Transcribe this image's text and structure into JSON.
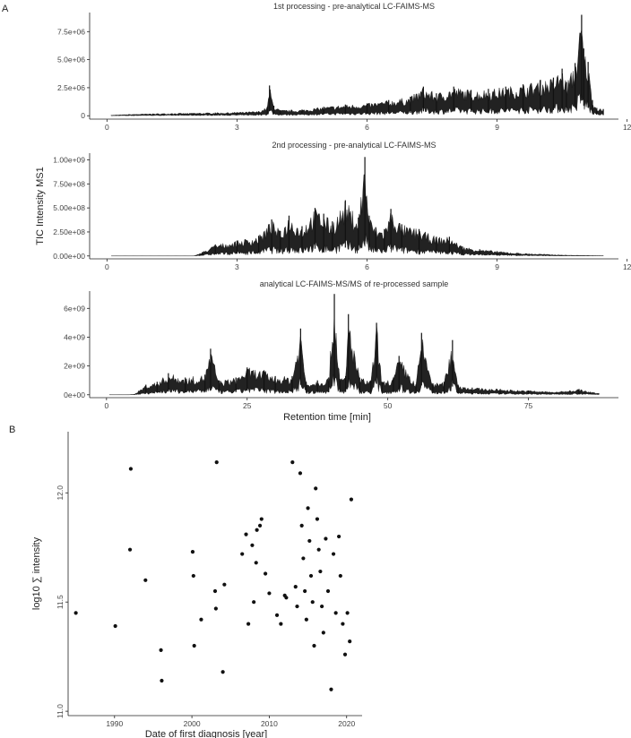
{
  "panels": {
    "a": "A",
    "b": "B"
  },
  "chart_data": [
    {
      "type": "area",
      "title": "1st processing - pre-analytical LC-FAIMS-MS",
      "xlabel": "",
      "ylabel": "",
      "xlim": [
        -0.4,
        11.8
      ],
      "ylim": [
        -300000,
        9200000
      ],
      "xticks": [
        0,
        3,
        6,
        9,
        12
      ],
      "yticks": [
        0,
        2500000,
        5000000,
        7500000
      ],
      "yticklabels": [
        "0",
        "2.5e+06",
        "5.0e+06",
        "7.5e+06"
      ],
      "series": [
        {
          "x": [
            0.1,
            0.5,
            1.0,
            1.5,
            2.0,
            2.5,
            3.0,
            3.5,
            3.7,
            3.75,
            3.85,
            4.0,
            4.5,
            5.0,
            5.5,
            6.0,
            6.5,
            7.0,
            7.3,
            7.6,
            8.0,
            8.4,
            8.8,
            9.2,
            9.6,
            10.0,
            10.3,
            10.5,
            10.6,
            10.8,
            10.95,
            11.0,
            11.1,
            11.2,
            11.3,
            11.45
          ],
          "y": [
            50000,
            120000,
            180000,
            220000,
            240000,
            280000,
            320000,
            400000,
            800000,
            2700000,
            900000,
            500000,
            550000,
            800000,
            1000000,
            1100000,
            1400000,
            1700000,
            2600000,
            2000000,
            2600000,
            2300000,
            2400000,
            2600000,
            2800000,
            3200000,
            3400000,
            4200000,
            3000000,
            4700000,
            9000000,
            6000000,
            4800000,
            1400000,
            700000,
            600000
          ]
        }
      ]
    },
    {
      "type": "area",
      "title": "2nd processing - pre-analytical LC-FAIMS-MS",
      "xlabel": "",
      "ylabel": "TIC Intensity MS1",
      "xlim": [
        -0.4,
        11.8
      ],
      "ylim": [
        -30000000,
        1070000000
      ],
      "xticks": [
        0,
        3,
        6,
        9,
        12
      ],
      "yticks": [
        0,
        250000000,
        500000000,
        750000000,
        1000000000
      ],
      "yticklabels": [
        "0.00e+00",
        "2.50e+08",
        "5.00e+08",
        "7.50e+08",
        "1.00e+09"
      ],
      "series": [
        {
          "x": [
            0.1,
            1.0,
            2.0,
            2.2,
            2.5,
            3.0,
            3.5,
            3.8,
            4.0,
            4.2,
            4.5,
            4.8,
            5.0,
            5.2,
            5.5,
            5.8,
            5.95,
            6.05,
            6.2,
            6.4,
            6.55,
            6.8,
            7.2,
            7.6,
            7.9,
            8.2,
            8.6,
            9.0,
            9.5,
            10.0,
            10.5,
            11.0,
            11.45
          ],
          "y": [
            0,
            0,
            0,
            40000000,
            120000000,
            160000000,
            210000000,
            380000000,
            260000000,
            420000000,
            310000000,
            500000000,
            440000000,
            360000000,
            580000000,
            400000000,
            1030000000,
            420000000,
            300000000,
            280000000,
            490000000,
            330000000,
            280000000,
            200000000,
            200000000,
            100000000,
            70000000,
            50000000,
            30000000,
            20000000,
            10000000,
            5000000,
            2000000
          ]
        }
      ]
    },
    {
      "type": "area",
      "title": "analytical LC-FAIMS-MS/MS of re-processed sample",
      "xlabel": "Retention time [min]",
      "ylabel": "",
      "xlim": [
        -3,
        91
      ],
      "ylim": [
        -200000000,
        7200000000
      ],
      "xticks": [
        0,
        25,
        50,
        75
      ],
      "yticks": [
        0,
        2000000000,
        4000000000,
        6000000000
      ],
      "yticklabels": [
        "0e+00",
        "2e+09",
        "4e+09",
        "6e+09"
      ],
      "series": [
        {
          "x": [
            0.5,
            4.0,
            5.0,
            7.0,
            9.0,
            11.0,
            14.0,
            17.5,
            18.5,
            20.0,
            23.0,
            25.0,
            28.0,
            30.0,
            33.0,
            34.5,
            35.5,
            37.5,
            39.5,
            40.5,
            41.5,
            42.5,
            43.0,
            45.0,
            47.0,
            48.0,
            49.0,
            51.0,
            52.0,
            55.0,
            56.0,
            58.0,
            60.0,
            61.5,
            62.5,
            65.0,
            70.0,
            75.0,
            80.0,
            84.0,
            86.0,
            87.5
          ],
          "y": [
            0,
            0,
            50000000,
            700000000,
            900000000,
            1500000000,
            1200000000,
            1400000000,
            3200000000,
            1000000000,
            1200000000,
            1900000000,
            1700000000,
            1300000000,
            1300000000,
            4600000000,
            900000000,
            1000000000,
            1200000000,
            7000000000,
            1100000000,
            1300000000,
            5600000000,
            1200000000,
            1000000000,
            5000000000,
            900000000,
            1200000000,
            2700000000,
            700000000,
            4300000000,
            800000000,
            900000000,
            3800000000,
            700000000,
            500000000,
            400000000,
            300000000,
            200000000,
            400000000,
            200000000,
            100000000
          ]
        }
      ]
    },
    {
      "type": "scatter",
      "title": "",
      "xlabel": "Date of first diagnosis [year]",
      "ylabel": "log10 ∑ intensity",
      "xlim": [
        1984,
        2022
      ],
      "ylim": [
        10.98,
        12.28
      ],
      "xticks": [
        1990,
        2000,
        2010,
        2020
      ],
      "yticks": [
        11.0,
        11.5,
        12.0
      ],
      "yticklabels": [
        "11.0",
        "11.5",
        "12.0"
      ],
      "x": [
        1985.0,
        1990.1,
        1992.0,
        1992.1,
        1994.0,
        1996.0,
        1996.1,
        2000.1,
        2000.2,
        2000.3,
        2001.2,
        2003.0,
        2003.1,
        2003.2,
        2004.0,
        2004.2,
        2006.5,
        2007.0,
        2007.3,
        2007.8,
        2008.0,
        2008.3,
        2008.4,
        2008.8,
        2009.0,
        2009.5,
        2010.0,
        2011.0,
        2011.5,
        2012.0,
        2012.2,
        2013.0,
        2013.4,
        2013.6,
        2014.0,
        2014.2,
        2014.4,
        2014.6,
        2014.8,
        2015.0,
        2015.2,
        2015.4,
        2015.6,
        2015.8,
        2016.0,
        2016.2,
        2016.4,
        2016.6,
        2016.8,
        2017.0,
        2017.3,
        2017.6,
        2018.0,
        2018.3,
        2018.6,
        2019.0,
        2019.2,
        2019.5,
        2019.8,
        2020.1,
        2020.4,
        2020.6
      ],
      "y": [
        11.45,
        11.39,
        11.74,
        12.11,
        11.6,
        11.28,
        11.14,
        11.73,
        11.62,
        11.3,
        11.42,
        11.55,
        11.47,
        12.14,
        11.18,
        11.58,
        11.72,
        11.81,
        11.4,
        11.76,
        11.5,
        11.68,
        11.83,
        11.85,
        11.88,
        11.63,
        11.54,
        11.44,
        11.4,
        11.53,
        11.52,
        12.14,
        11.57,
        11.48,
        12.09,
        11.85,
        11.7,
        11.55,
        11.42,
        11.93,
        11.78,
        11.62,
        11.5,
        11.3,
        12.02,
        11.88,
        11.74,
        11.64,
        11.48,
        11.36,
        11.79,
        11.55,
        11.1,
        11.72,
        11.45,
        11.8,
        11.62,
        11.4,
        11.26,
        11.45,
        11.32,
        11.97
      ]
    }
  ]
}
